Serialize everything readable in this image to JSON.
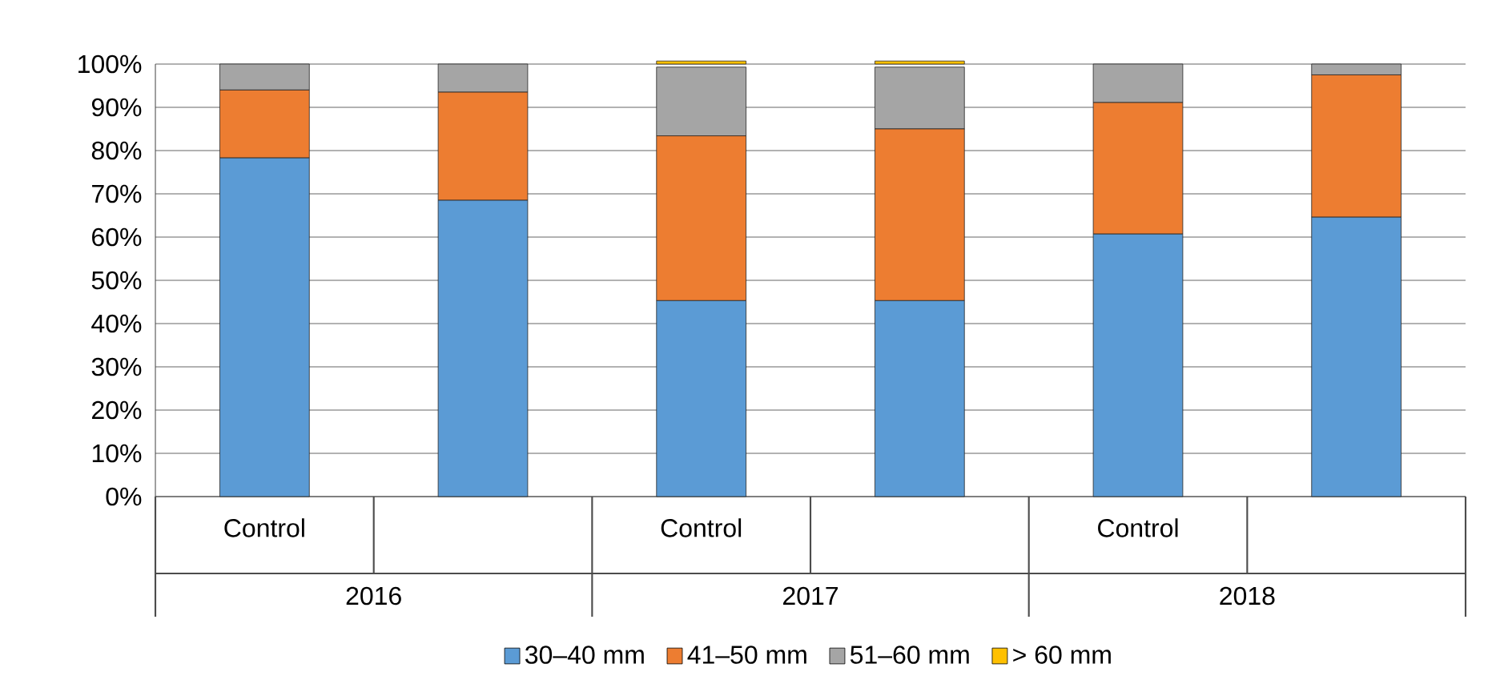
{
  "chart_data": {
    "type": "bar",
    "stacked": true,
    "categories": [
      "Control",
      null,
      "Control",
      null,
      "Control",
      null
    ],
    "series": [
      {
        "name": "30–40 mm",
        "color": "#5b9bd5",
        "values": [
          78.3,
          68.5,
          45.3,
          45.3,
          60.7,
          64.6
        ]
      },
      {
        "name": "41–50 mm",
        "color": "#ed7d31",
        "values": [
          15.7,
          25.0,
          38.1,
          39.7,
          30.4,
          32.9
        ]
      },
      {
        "name": "51–60 mm",
        "color": "#a5a5a5",
        "values": [
          6.0,
          6.5,
          15.9,
          14.3,
          8.9,
          2.5
        ]
      },
      {
        "name": "> 60 mm",
        "color": "#ffc000",
        "values": [
          null,
          null,
          0.7,
          0.7,
          null,
          null
        ]
      }
    ],
    "ylim": [
      0,
      100
    ],
    "yticks": [
      {
        "value": 0,
        "label": "0%"
      },
      {
        "value": 10,
        "label": "10%"
      },
      {
        "value": 20,
        "label": "20%"
      },
      {
        "value": 30,
        "label": "30%"
      },
      {
        "value": 40,
        "label": "40%"
      },
      {
        "value": 50,
        "label": "50%"
      },
      {
        "value": 60,
        "label": "60%"
      },
      {
        "value": 70,
        "label": "70%"
      },
      {
        "value": 80,
        "label": "80%"
      },
      {
        "value": 90,
        "label": "90%"
      },
      {
        "value": 100,
        "label": "100%"
      }
    ],
    "annotations": [
      "2016",
      "2017",
      "2018"
    ],
    "grid": "y",
    "legend": "bottom"
  }
}
